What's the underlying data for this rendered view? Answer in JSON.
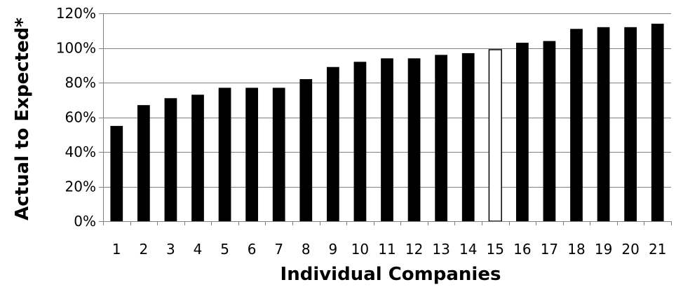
{
  "chart_data": {
    "type": "bar",
    "title": "",
    "xlabel": "Individual Companies",
    "ylabel": "Actual to Expected*",
    "categories": [
      "1",
      "2",
      "3",
      "4",
      "5",
      "6",
      "7",
      "8",
      "9",
      "10",
      "11",
      "12",
      "13",
      "14",
      "15",
      "16",
      "17",
      "18",
      "19",
      "20",
      "21"
    ],
    "values": [
      55,
      67,
      71,
      73,
      77,
      77,
      77,
      82,
      89,
      92,
      94,
      94,
      96,
      97,
      99,
      103,
      104,
      111,
      112,
      112,
      114
    ],
    "highlight_index": 14,
    "ylim": [
      0,
      120
    ],
    "yticks": [
      0,
      20,
      40,
      60,
      80,
      100,
      120
    ],
    "ytick_labels": [
      "0%",
      "20%",
      "40%",
      "60%",
      "80%",
      "100%",
      "120%"
    ],
    "grid": "horizontal",
    "colors": {
      "bar": "#000000",
      "highlight_fill": "#ffffff",
      "highlight_stroke": "#000000",
      "grid": "#808080",
      "axis": "#808080"
    }
  }
}
